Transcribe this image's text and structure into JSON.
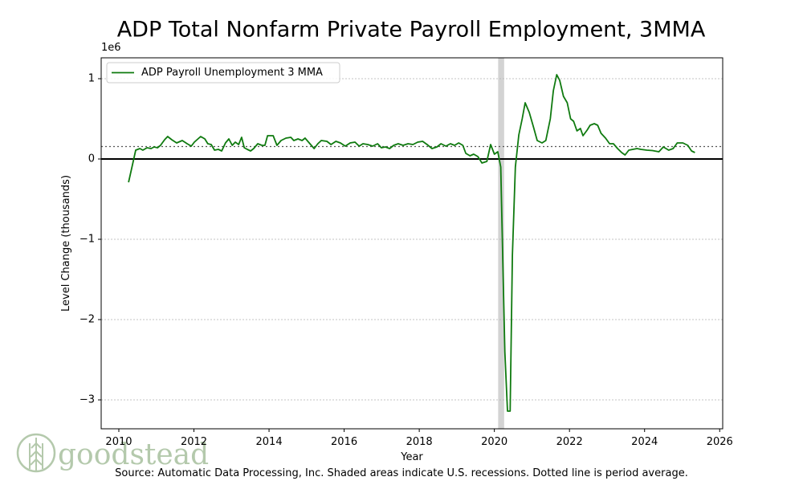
{
  "chart_data": {
    "type": "line",
    "title": "ADP Total Nonfarm Private Payroll Employment, 3MMA",
    "x_label": "Year",
    "y_label": "Level Change (thousands)",
    "y_offset_label": "1e6",
    "source": "Source: Automatic Data Processing, Inc. Shaded areas indicate U.S. recessions. Dotted line is period average.",
    "logo": "goodstead",
    "xlim": [
      2009.53,
      2026.08
    ],
    "ylim": [
      -3360000,
      1260000
    ],
    "xticks": [
      2010,
      2012,
      2014,
      2016,
      2018,
      2020,
      2022,
      2024,
      2026
    ],
    "yticks": [
      {
        "value": -3000000,
        "label": "−3"
      },
      {
        "value": -2000000,
        "label": "−2"
      },
      {
        "value": -1000000,
        "label": "−1"
      },
      {
        "value": 0,
        "label": "0"
      },
      {
        "value": 1000000,
        "label": "1"
      }
    ],
    "grid": true,
    "legend": "upper left",
    "zero_line": 0,
    "average": 155000,
    "recession": [
      2020.1,
      2020.26
    ],
    "x": [
      2010.26,
      2010.36,
      2010.45,
      2010.56,
      2010.64,
      2010.75,
      2010.86,
      2010.94,
      2011.03,
      2011.11,
      2011.22,
      2011.3,
      2011.41,
      2011.54,
      2011.69,
      2011.82,
      2011.93,
      2012.01,
      2012.18,
      2012.29,
      2012.37,
      2012.46,
      2012.55,
      2012.65,
      2012.74,
      2012.84,
      2012.93,
      2013.02,
      2013.1,
      2013.19,
      2013.27,
      2013.34,
      2013.42,
      2013.51,
      2013.59,
      2013.7,
      2013.81,
      2013.89,
      2013.96,
      2014.11,
      2014.21,
      2014.32,
      2014.45,
      2014.58,
      2014.66,
      2014.77,
      2014.88,
      2014.96,
      2015.07,
      2015.2,
      2015.3,
      2015.39,
      2015.54,
      2015.65,
      2015.78,
      2015.9,
      2016.03,
      2016.16,
      2016.29,
      2016.4,
      2016.5,
      2016.63,
      2016.76,
      2016.89,
      2016.99,
      2017.1,
      2017.21,
      2017.32,
      2017.44,
      2017.57,
      2017.7,
      2017.83,
      2017.96,
      2018.09,
      2018.21,
      2018.34,
      2018.47,
      2018.58,
      2018.71,
      2018.83,
      2018.94,
      2019.05,
      2019.16,
      2019.24,
      2019.35,
      2019.45,
      2019.56,
      2019.67,
      2019.8,
      2019.9,
      2020.0,
      2020.09,
      2020.17,
      2020.24,
      2020.28,
      2020.35,
      2020.42,
      2020.48,
      2020.56,
      2020.65,
      2020.74,
      2020.82,
      2020.93,
      2021.04,
      2021.14,
      2021.27,
      2021.37,
      2021.49,
      2021.57,
      2021.66,
      2021.74,
      2021.84,
      2021.94,
      2022.03,
      2022.11,
      2022.2,
      2022.29,
      2022.36,
      2022.47,
      2022.55,
      2022.66,
      2022.75,
      2022.84,
      2022.96,
      2023.07,
      2023.17,
      2023.28,
      2023.39,
      2023.48,
      2023.58,
      2023.69,
      2023.8,
      2023.9,
      2024.06,
      2024.21,
      2024.38,
      2024.5,
      2024.64,
      2024.76,
      2024.87,
      2025.02,
      2025.15,
      2025.25,
      2025.34
    ],
    "series": [
      {
        "name": "ADP Payroll Unemployment 3 MMA",
        "color": "#0f7a0f",
        "values": [
          -290000,
          -80000,
          110000,
          130000,
          110000,
          140000,
          130000,
          150000,
          140000,
          170000,
          240000,
          280000,
          240000,
          200000,
          230000,
          190000,
          160000,
          210000,
          280000,
          250000,
          190000,
          180000,
          110000,
          120000,
          100000,
          200000,
          250000,
          170000,
          210000,
          180000,
          270000,
          140000,
          120000,
          100000,
          130000,
          190000,
          170000,
          170000,
          290000,
          290000,
          170000,
          230000,
          260000,
          270000,
          230000,
          250000,
          230000,
          260000,
          200000,
          130000,
          190000,
          230000,
          220000,
          180000,
          220000,
          200000,
          160000,
          200000,
          210000,
          160000,
          190000,
          180000,
          160000,
          190000,
          140000,
          150000,
          130000,
          170000,
          190000,
          170000,
          190000,
          180000,
          210000,
          220000,
          180000,
          130000,
          150000,
          190000,
          160000,
          190000,
          170000,
          200000,
          170000,
          70000,
          40000,
          60000,
          30000,
          -50000,
          -30000,
          180000,
          60000,
          90000,
          -100000,
          -1600000,
          -2400000,
          -3140000,
          -3140000,
          -1200000,
          -100000,
          300000,
          500000,
          700000,
          580000,
          400000,
          230000,
          200000,
          230000,
          500000,
          850000,
          1050000,
          980000,
          780000,
          700000,
          500000,
          470000,
          350000,
          380000,
          290000,
          360000,
          420000,
          440000,
          420000,
          320000,
          260000,
          190000,
          190000,
          130000,
          80000,
          50000,
          110000,
          120000,
          130000,
          120000,
          110000,
          105000,
          90000,
          150000,
          110000,
          130000,
          200000,
          200000,
          170000,
          100000,
          80000
        ]
      }
    ]
  }
}
